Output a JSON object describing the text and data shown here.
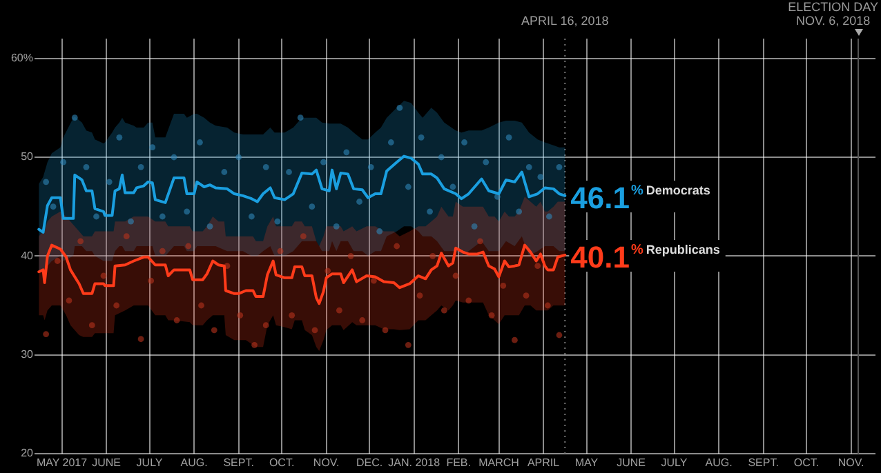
{
  "chart_data": {
    "type": "line",
    "grid": true,
    "legend": false,
    "marker": "none",
    "line_style": "solid",
    "xlim": [
      "2017-04-12",
      "2018-11-18"
    ],
    "xticks": [
      {
        "value": "2017-05-01",
        "label": "MAY 2017"
      },
      {
        "value": "2017-06-01",
        "label": "JUNE"
      },
      {
        "value": "2017-07-01",
        "label": "JULY"
      },
      {
        "value": "2017-08-01",
        "label": "AUG."
      },
      {
        "value": "2017-09-01",
        "label": "SEPT."
      },
      {
        "value": "2017-10-01",
        "label": "OCT."
      },
      {
        "value": "2017-11-01",
        "label": "NOV."
      },
      {
        "value": "2017-12-01",
        "label": "DEC."
      },
      {
        "value": "2018-01-01",
        "label": "JAN. 2018"
      },
      {
        "value": "2018-02-01",
        "label": "FEB."
      },
      {
        "value": "2018-03-01",
        "label": "MARCH"
      },
      {
        "value": "2018-04-01",
        "label": "APRIL"
      },
      {
        "value": "2018-05-01",
        "label": "MAY"
      },
      {
        "value": "2018-06-01",
        "label": "JUNE"
      },
      {
        "value": "2018-07-01",
        "label": "JULY"
      },
      {
        "value": "2018-08-01",
        "label": "AUG."
      },
      {
        "value": "2018-09-01",
        "label": "SEPT."
      },
      {
        "value": "2018-10-01",
        "label": "OCT."
      },
      {
        "value": "2018-11-01",
        "label": "NOV."
      }
    ],
    "ylim": [
      20,
      62
    ],
    "yticks": [
      20,
      30,
      40,
      50,
      {
        "value": 60,
        "label": "60%"
      }
    ],
    "ref_lines": [
      {
        "axis": "x",
        "value": "2018-04-16",
        "label": "APRIL 16, 2018",
        "color": "#777777",
        "line_style": "dotted"
      },
      {
        "axis": "x",
        "value": "2018-11-06",
        "label": "ELECTION DAY\nNOV. 6, 2018",
        "color": "#555555",
        "line_style": "solid"
      }
    ],
    "series": [
      {
        "name": "Democrats",
        "color": "#1a9fe0",
        "x": [
          "2017-04-15",
          "2017-04-18",
          "2017-04-21",
          "2017-04-24",
          "2017-04-30",
          "2017-05-02",
          "2017-05-09",
          "2017-05-10",
          "2017-05-15",
          "2017-05-18",
          "2017-05-22",
          "2017-05-24",
          "2017-05-30",
          "2017-05-31",
          "2017-06-05",
          "2017-06-07",
          "2017-06-10",
          "2017-06-12",
          "2017-06-14",
          "2017-06-20",
          "2017-06-22",
          "2017-06-27",
          "2017-06-30",
          "2017-07-03",
          "2017-07-05",
          "2017-07-12",
          "2017-07-18",
          "2017-07-25",
          "2017-07-27",
          "2017-08-01",
          "2017-08-03",
          "2017-08-08",
          "2017-08-12",
          "2017-08-16",
          "2017-08-24",
          "2017-08-29",
          "2017-09-04",
          "2017-09-10",
          "2017-09-14",
          "2017-09-18",
          "2017-09-23",
          "2017-09-26",
          "2017-10-03",
          "2017-10-09",
          "2017-10-15",
          "2017-10-22",
          "2017-10-25",
          "2017-10-29",
          "2017-11-03",
          "2017-11-05",
          "2017-11-08",
          "2017-11-11",
          "2017-11-16",
          "2017-11-20",
          "2017-11-26",
          "2017-11-30",
          "2017-12-05",
          "2017-12-09",
          "2017-12-13",
          "2017-12-20",
          "2017-12-25",
          "2017-12-30",
          "2018-01-04",
          "2018-01-07",
          "2018-01-13",
          "2018-01-17",
          "2018-01-22",
          "2018-01-30",
          "2018-02-03",
          "2018-02-08",
          "2018-02-17",
          "2018-02-22",
          "2018-03-01",
          "2018-03-06",
          "2018-03-12",
          "2018-03-17",
          "2018-03-22",
          "2018-03-28",
          "2018-04-02",
          "2018-04-08",
          "2018-04-12",
          "2018-04-16"
        ],
        "values": [
          42.7,
          42.4,
          45.1,
          45.9,
          45.9,
          43.8,
          43.8,
          48.2,
          47.7,
          46.6,
          46.6,
          44.8,
          44.5,
          44.1,
          44.1,
          46.6,
          46.8,
          48.2,
          46.4,
          46.4,
          46.9,
          47.1,
          47.5,
          47.4,
          45.7,
          45.4,
          47.9,
          47.9,
          46.3,
          46.3,
          47.5,
          47.0,
          47.2,
          46.9,
          46.8,
          46.3,
          46.1,
          45.8,
          45.5,
          46.3,
          46.9,
          45.9,
          45.7,
          46.3,
          48.4,
          48.3,
          48.7,
          46.8,
          46.6,
          48.7,
          46.8,
          48.4,
          48.3,
          46.8,
          46.7,
          45.9,
          46.3,
          46.3,
          48.6,
          49.5,
          50.1,
          49.9,
          49.3,
          48.3,
          48.3,
          47.9,
          46.8,
          46.3,
          45.8,
          46.3,
          47.8,
          46.6,
          46.3,
          47.7,
          47.5,
          48.5,
          46.0,
          46.3,
          46.9,
          46.8,
          46.3,
          46.1
        ],
        "upper": [
          47.3,
          48,
          49.5,
          50.4,
          51,
          52,
          54,
          54.1,
          53.5,
          52.7,
          52.5,
          51.8,
          51.4,
          51.5,
          52.5,
          53,
          53.5,
          54,
          53.5,
          53.2,
          53,
          53,
          53.5,
          53.5,
          52,
          52,
          54.4,
          54.4,
          54,
          54.4,
          54.4,
          54,
          53.5,
          53.2,
          53,
          52.5,
          52.3,
          52.3,
          52.3,
          52.3,
          53,
          52.5,
          52.5,
          53,
          54,
          54,
          54,
          53.5,
          53.4,
          53.4,
          53.4,
          53.4,
          53,
          52.5,
          51.8,
          51.8,
          52.5,
          53,
          54,
          55,
          55.7,
          55.5,
          54.5,
          54,
          55,
          54.5,
          53.5,
          52.7,
          52.5,
          52.7,
          52.7,
          53,
          53.5,
          53.7,
          53.7,
          53.5,
          52.5,
          51.8,
          51.5,
          51.2,
          51,
          51
        ],
        "lower": [
          38.5,
          38.5,
          39,
          39.5,
          40,
          39.5,
          40,
          41,
          41,
          40.5,
          40.5,
          40,
          39.5,
          39.5,
          39.5,
          40.5,
          41,
          41,
          40.5,
          40.5,
          41,
          41,
          41,
          41,
          40,
          40,
          41,
          41,
          40.5,
          40.5,
          41,
          41,
          41,
          41,
          40.5,
          40.5,
          40.5,
          40,
          40,
          40.5,
          41,
          40,
          40,
          40.5,
          41.5,
          41.5,
          41.5,
          40.5,
          40.5,
          41.5,
          40.5,
          41.5,
          41.5,
          40.5,
          40.5,
          40,
          40.5,
          40.5,
          42,
          42.5,
          43,
          43,
          42.5,
          42,
          42,
          41.5,
          40.5,
          40.5,
          40,
          40.5,
          41.5,
          40.5,
          40.5,
          41.5,
          41,
          42,
          40,
          40.5,
          41,
          41,
          40.5,
          40.5
        ],
        "value_labels": [
          null,
          null,
          null,
          null,
          null,
          null,
          null,
          null,
          null,
          null,
          null,
          null,
          null,
          null,
          null,
          null,
          null,
          null,
          null,
          null,
          null,
          null,
          null,
          null,
          null,
          null,
          null,
          null,
          null,
          null,
          null,
          null,
          null,
          null,
          null,
          null,
          null,
          null,
          null,
          null,
          null,
          null,
          null,
          null,
          null,
          null,
          null,
          null,
          null,
          null,
          null,
          null,
          null,
          null,
          null,
          null,
          null,
          null,
          null,
          null,
          null,
          null,
          null,
          null,
          null,
          null,
          null,
          null,
          null,
          null,
          null,
          null,
          null,
          null,
          null,
          null,
          null,
          null,
          null,
          null,
          null,
          "46.1%"
        ]
      },
      {
        "name": "Republicans",
        "color": "#ff3b1a",
        "x": [
          "2017-04-15",
          "2017-04-18",
          "2017-04-19",
          "2017-04-21",
          "2017-04-24",
          "2017-04-30",
          "2017-05-04",
          "2017-05-07",
          "2017-05-13",
          "2017-05-16",
          "2017-05-22",
          "2017-05-24",
          "2017-05-30",
          "2017-05-31",
          "2017-06-06",
          "2017-06-07",
          "2017-06-14",
          "2017-06-20",
          "2017-06-27",
          "2017-06-30",
          "2017-07-05",
          "2017-07-12",
          "2017-07-14",
          "2017-07-18",
          "2017-07-29",
          "2017-07-31",
          "2017-08-07",
          "2017-08-10",
          "2017-08-14",
          "2017-08-18",
          "2017-08-22",
          "2017-08-23",
          "2017-08-29",
          "2017-09-01",
          "2017-09-06",
          "2017-09-11",
          "2017-09-13",
          "2017-09-18",
          "2017-09-21",
          "2017-09-25",
          "2017-09-27",
          "2017-10-03",
          "2017-10-08",
          "2017-10-10",
          "2017-10-15",
          "2017-10-17",
          "2017-10-22",
          "2017-10-25",
          "2017-10-27",
          "2017-10-30",
          "2017-11-01",
          "2017-11-05",
          "2017-11-11",
          "2017-11-13",
          "2017-11-19",
          "2017-11-22",
          "2017-11-29",
          "2017-12-05",
          "2017-12-11",
          "2017-12-18",
          "2017-12-22",
          "2017-12-29",
          "2018-01-04",
          "2018-01-09",
          "2018-01-13",
          "2018-01-17",
          "2018-01-20",
          "2018-01-25",
          "2018-01-28",
          "2018-01-30",
          "2018-02-04",
          "2018-02-08",
          "2018-02-14",
          "2018-02-18",
          "2018-02-22",
          "2018-02-26",
          "2018-03-01",
          "2018-03-05",
          "2018-03-08",
          "2018-03-12",
          "2018-03-15",
          "2018-03-19",
          "2018-03-23",
          "2018-03-27",
          "2018-03-30",
          "2018-04-02",
          "2018-04-04",
          "2018-04-08",
          "2018-04-11",
          "2018-04-16"
        ],
        "values": [
          38.4,
          38.6,
          37.3,
          40.0,
          41.1,
          40.7,
          39.9,
          38.6,
          37.2,
          36.2,
          36.2,
          37.2,
          37.2,
          37.0,
          37.0,
          39.0,
          39.1,
          39.5,
          39.9,
          39.9,
          39.1,
          39.1,
          38.0,
          38.6,
          38.6,
          37.6,
          37.6,
          38.2,
          39.5,
          39.1,
          39.0,
          36.5,
          36.2,
          36.2,
          36.5,
          36.5,
          35.9,
          35.9,
          38.1,
          39.5,
          38.1,
          37.8,
          37.8,
          38.9,
          38.9,
          38.0,
          38.0,
          35.8,
          35.2,
          36.4,
          37.8,
          38.2,
          38.2,
          37.3,
          38.6,
          37.4,
          38.0,
          37.9,
          37.4,
          37.3,
          36.8,
          37.2,
          38.0,
          37.7,
          38.6,
          39.0,
          40.3,
          39.0,
          39.3,
          40.8,
          40.4,
          40.2,
          40.2,
          40.4,
          39.0,
          38.7,
          37.9,
          39.5,
          38.9,
          39.0,
          39.1,
          41.1,
          40.4,
          39.5,
          40.2,
          39.0,
          38.6,
          38.6,
          39.9,
          40.1
        ],
        "upper": [
          42,
          42.5,
          42.5,
          43.5,
          44,
          44.5,
          44,
          43.5,
          42.5,
          42,
          42,
          42.5,
          42.5,
          42.5,
          42.5,
          43.5,
          43.5,
          44,
          44,
          44,
          43.5,
          43.5,
          43,
          43,
          43,
          42.5,
          42.5,
          43,
          44,
          43.5,
          43.5,
          42,
          42,
          42,
          42,
          42,
          41.5,
          41.5,
          43,
          44,
          43,
          43,
          43,
          43.5,
          43.5,
          43,
          43,
          41.5,
          41,
          42,
          43,
          43,
          43,
          42.5,
          43,
          42.5,
          43,
          43,
          42.5,
          42.5,
          42,
          42.5,
          43,
          43,
          43.5,
          44,
          45,
          44,
          44,
          45.5,
          45,
          45,
          45,
          45,
          44,
          44,
          43.5,
          44.5,
          44,
          44,
          44.5,
          46,
          45.5,
          45,
          45.5,
          44.5,
          44.5,
          45,
          45.5,
          45.5
        ],
        "lower": [
          34,
          34,
          33.5,
          34.5,
          35,
          35,
          34,
          33,
          32,
          31.8,
          31.8,
          32.2,
          32.2,
          32.2,
          32.2,
          34,
          34.5,
          35,
          35,
          35,
          34,
          34,
          33.5,
          33.5,
          33.3,
          33,
          33,
          33.5,
          34,
          34,
          34,
          32,
          31.5,
          31.5,
          31.5,
          31,
          30.8,
          30.8,
          33,
          34,
          33,
          32.8,
          32.6,
          33.5,
          33.5,
          32.5,
          32,
          30.8,
          30.4,
          31.5,
          32.5,
          33,
          33,
          32.5,
          33.3,
          33,
          33,
          33,
          32.6,
          32.6,
          32.5,
          32.6,
          33.5,
          33.5,
          34,
          34.5,
          35,
          34.5,
          35,
          35.5,
          35.3,
          35.3,
          35.3,
          35.3,
          34,
          33.5,
          33.1,
          34,
          34,
          34,
          34,
          35,
          35,
          34.5,
          34.5,
          34.5,
          34.5,
          35,
          35,
          35
        ],
        "value_labels": [
          null,
          null,
          null,
          null,
          null,
          null,
          null,
          null,
          null,
          null,
          null,
          null,
          null,
          null,
          null,
          null,
          null,
          null,
          null,
          null,
          null,
          null,
          null,
          null,
          null,
          null,
          null,
          null,
          null,
          null,
          null,
          null,
          null,
          null,
          null,
          null,
          null,
          null,
          null,
          null,
          null,
          null,
          null,
          null,
          null,
          null,
          null,
          null,
          null,
          null,
          null,
          null,
          null,
          null,
          null,
          null,
          null,
          null,
          null,
          null,
          null,
          null,
          null,
          null,
          null,
          null,
          null,
          null,
          null,
          null,
          null,
          null,
          null,
          null,
          null,
          null,
          null,
          null,
          null,
          null,
          null,
          null,
          null,
          null,
          null,
          null,
          null,
          null,
          null,
          "40.1%"
        ]
      },
      {
        "type": "scatter",
        "color": "#2f86b8",
        "marker": "circle",
        "x": [
          "2017-04-20",
          "2017-04-25",
          "2017-05-02",
          "2017-05-10",
          "2017-05-18",
          "2017-05-25",
          "2017-06-03",
          "2017-06-10",
          "2017-06-18",
          "2017-06-25",
          "2017-07-03",
          "2017-07-10",
          "2017-07-18",
          "2017-07-27",
          "2017-08-05",
          "2017-08-12",
          "2017-08-22",
          "2017-09-01",
          "2017-09-10",
          "2017-09-20",
          "2017-09-28",
          "2017-10-06",
          "2017-10-14",
          "2017-10-22",
          "2017-10-30",
          "2017-11-08",
          "2017-11-15",
          "2017-11-24",
          "2017-12-02",
          "2017-12-08",
          "2017-12-16",
          "2017-12-22",
          "2017-12-28",
          "2018-01-06",
          "2018-01-12",
          "2018-01-20",
          "2018-01-28",
          "2018-02-05",
          "2018-02-12",
          "2018-02-20",
          "2018-02-28",
          "2018-03-08",
          "2018-03-15",
          "2018-03-22",
          "2018-03-30",
          "2018-04-05",
          "2018-04-12"
        ],
        "values": [
          47.5,
          45.0,
          49.5,
          54.0,
          49.0,
          44.0,
          47.5,
          52.0,
          43.5,
          49.0,
          51.0,
          44.0,
          50.0,
          44.5,
          51.5,
          43.0,
          48.5,
          50.0,
          44.0,
          49.0,
          43.5,
          48.5,
          54.0,
          45.0,
          49.5,
          43.0,
          50.5,
          45.5,
          49.0,
          42.5,
          51.5,
          55.0,
          47.0,
          52.0,
          44.5,
          50.0,
          47.0,
          51.5,
          43.0,
          49.5,
          46.0,
          52.0,
          44.5,
          49.0,
          48.0,
          44.0,
          49.0
        ]
      },
      {
        "type": "scatter",
        "color": "#b5321d",
        "marker": "circle",
        "x": [
          "2017-04-20",
          "2017-04-28",
          "2017-05-06",
          "2017-05-14",
          "2017-05-22",
          "2017-05-30",
          "2017-06-08",
          "2017-06-15",
          "2017-06-25",
          "2017-07-02",
          "2017-07-10",
          "2017-07-20",
          "2017-07-28",
          "2017-08-06",
          "2017-08-15",
          "2017-08-24",
          "2017-09-02",
          "2017-09-12",
          "2017-09-20",
          "2017-09-30",
          "2017-10-08",
          "2017-10-16",
          "2017-10-24",
          "2017-11-02",
          "2017-11-10",
          "2017-11-18",
          "2017-11-26",
          "2017-12-04",
          "2017-12-12",
          "2017-12-20",
          "2017-12-28",
          "2018-01-05",
          "2018-01-14",
          "2018-01-22",
          "2018-01-30",
          "2018-02-08",
          "2018-02-16",
          "2018-02-24",
          "2018-03-04",
          "2018-03-12",
          "2018-03-20",
          "2018-03-28",
          "2018-04-04",
          "2018-04-12"
        ],
        "values": [
          32.1,
          39.5,
          35.5,
          41.5,
          33.0,
          38.0,
          35.0,
          42.0,
          31.6,
          37.5,
          40.5,
          33.5,
          41.0,
          35.0,
          32.5,
          39.0,
          34.0,
          31.0,
          33.0,
          40.5,
          34.0,
          42.0,
          32.5,
          38.5,
          34.5,
          40.0,
          33.5,
          37.5,
          32.5,
          41.0,
          31.0,
          36.0,
          40.0,
          34.5,
          38.0,
          35.5,
          41.5,
          34.0,
          37.0,
          31.5,
          36.0,
          39.0,
          35.0,
          32.0
        ]
      }
    ]
  }
}
